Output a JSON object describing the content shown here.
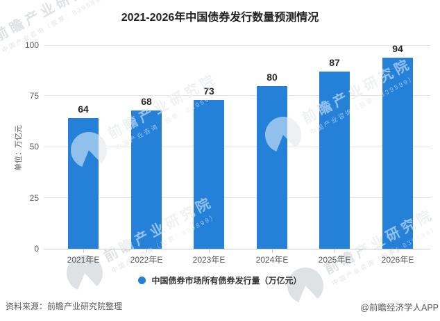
{
  "title": "2021-2026年中国债券发行数量预测情况",
  "chart_data": {
    "type": "bar",
    "categories": [
      "2021年E",
      "2022年E",
      "2023年E",
      "2024年E",
      "2025年E",
      "2026年E"
    ],
    "values": [
      64,
      68,
      73,
      80,
      87,
      94
    ],
    "title": "2021-2026年中国债券发行数量预测情况",
    "xlabel": "",
    "ylabel": "单位：万亿元",
    "ylim": [
      0,
      100
    ],
    "yticks": [
      0,
      25,
      50,
      75,
      100
    ],
    "grid": "horizontal",
    "legend_position": "bottom",
    "bar_color": "#2581d8",
    "label_color": "#262626",
    "series": [
      {
        "name": "中国债券市场所有债券发行量（万亿元）",
        "values": [
          64,
          68,
          73,
          80,
          87,
          94
        ]
      }
    ]
  },
  "legend": {
    "label": "中国债券市场所有债券发行量（万亿元）",
    "dot_color": "#2581d8"
  },
  "footer": {
    "source": "资料来源：前瞻产业研究院整理",
    "brand": "@前瞻经济学人APP"
  },
  "watermark": {
    "big": "前瞻产业研究院",
    "small": "中国产业咨询（股票：839599）",
    "logo": "qianzhan-logo"
  }
}
